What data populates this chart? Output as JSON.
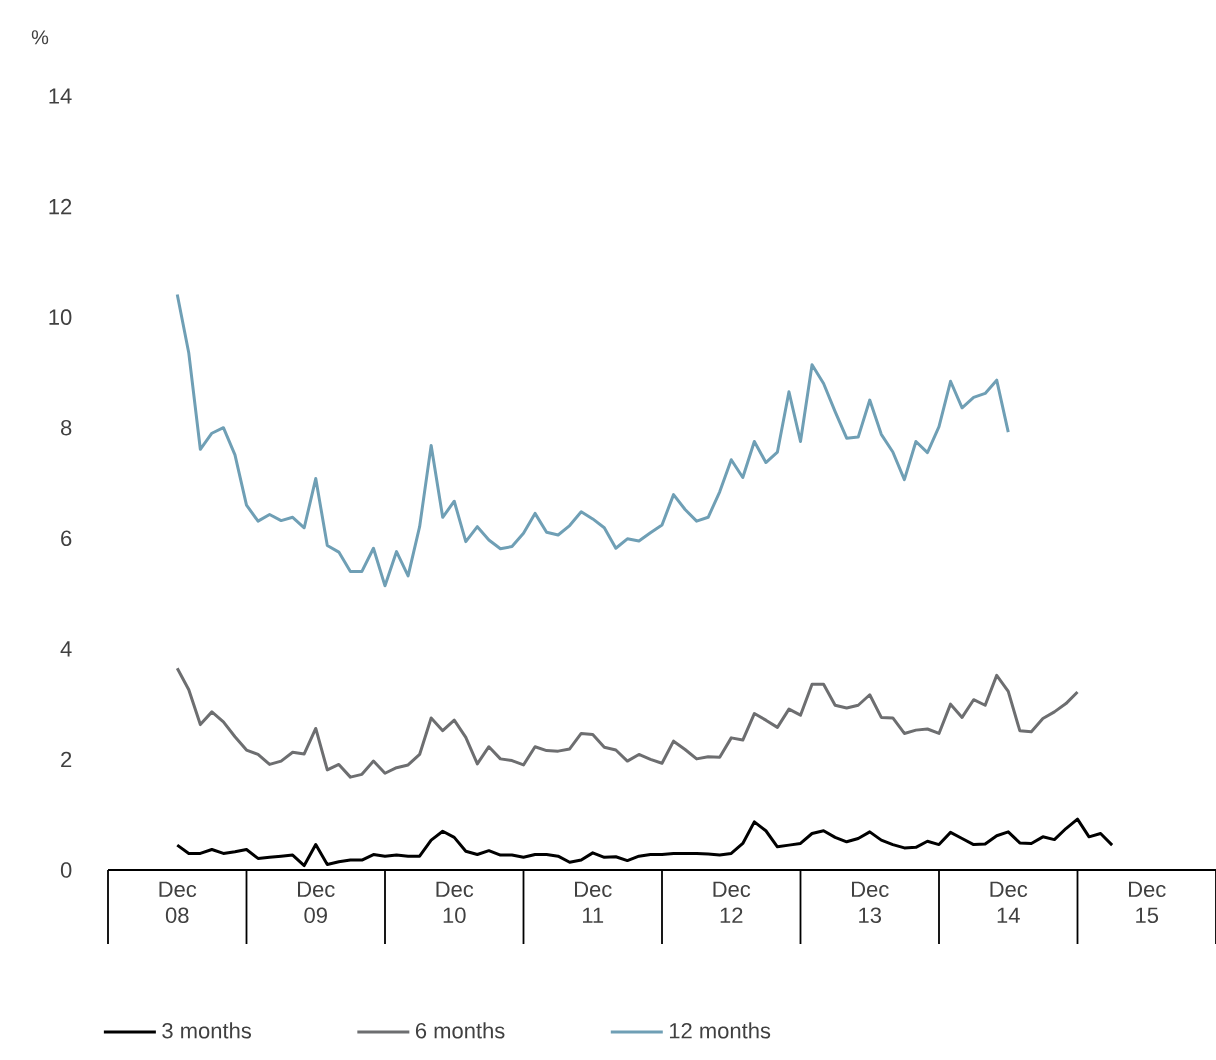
{
  "chart_data": {
    "type": "line",
    "ylabel": "%",
    "xlim": [
      "2008-06",
      "2016-06"
    ],
    "ylim": [
      0,
      14
    ],
    "yticks": [
      0,
      2,
      4,
      6,
      8,
      10,
      12,
      14
    ],
    "xticks": [
      {
        "value": "2008-12",
        "label": "Dec 08"
      },
      {
        "value": "2009-12",
        "label": "Dec 09"
      },
      {
        "value": "2010-12",
        "label": "Dec 10"
      },
      {
        "value": "2011-12",
        "label": "Dec 11"
      },
      {
        "value": "2012-12",
        "label": "Dec 12"
      },
      {
        "value": "2013-12",
        "label": "Dec 13"
      },
      {
        "value": "2014-12",
        "label": "Dec 14"
      },
      {
        "value": "2015-12",
        "label": "Dec 15"
      }
    ],
    "legend": "bottom",
    "grid": false,
    "series": [
      {
        "name": "3 months",
        "color": "#000000",
        "x": [
          "2008-12",
          "2009-01",
          "2009-02",
          "2009-03",
          "2009-04",
          "2009-05",
          "2009-06",
          "2009-07",
          "2009-08",
          "2009-09",
          "2009-10",
          "2009-11",
          "2009-12",
          "2010-01",
          "2010-02",
          "2010-03",
          "2010-04",
          "2010-05",
          "2010-06",
          "2010-07",
          "2010-08",
          "2010-09",
          "2010-10",
          "2010-11",
          "2010-12",
          "2011-01",
          "2011-02",
          "2011-03",
          "2011-04",
          "2011-05",
          "2011-06",
          "2011-07",
          "2011-08",
          "2011-09",
          "2011-10",
          "2011-11",
          "2011-12",
          "2012-01",
          "2012-02",
          "2012-03",
          "2012-04",
          "2012-05",
          "2012-06",
          "2012-07",
          "2012-08",
          "2012-09",
          "2012-10",
          "2012-11",
          "2012-12",
          "2013-01",
          "2013-02",
          "2013-03",
          "2013-04",
          "2013-05",
          "2013-06",
          "2013-07",
          "2013-08",
          "2013-09",
          "2013-10",
          "2013-11",
          "2013-12",
          "2014-01",
          "2014-02",
          "2014-03",
          "2014-04",
          "2014-05",
          "2014-06",
          "2014-07",
          "2014-08",
          "2014-09",
          "2014-10",
          "2014-11",
          "2014-12",
          "2015-01",
          "2015-02",
          "2015-03",
          "2015-04",
          "2015-05",
          "2015-06",
          "2015-07",
          "2015-08",
          "2015-09"
        ],
        "values": [
          0.45,
          0.3,
          0.3,
          0.37,
          0.3,
          0.33,
          0.37,
          0.21,
          0.23,
          0.25,
          0.27,
          0.08,
          0.46,
          0.1,
          0.15,
          0.18,
          0.18,
          0.28,
          0.25,
          0.27,
          0.25,
          0.25,
          0.54,
          0.7,
          0.59,
          0.34,
          0.28,
          0.35,
          0.27,
          0.27,
          0.23,
          0.28,
          0.28,
          0.25,
          0.14,
          0.18,
          0.31,
          0.23,
          0.24,
          0.17,
          0.25,
          0.28,
          0.28,
          0.3,
          0.3,
          0.3,
          0.29,
          0.27,
          0.3,
          0.48,
          0.87,
          0.71,
          0.42,
          0.45,
          0.48,
          0.66,
          0.71,
          0.59,
          0.51,
          0.57,
          0.69,
          0.54,
          0.46,
          0.4,
          0.41,
          0.52,
          0.46,
          0.68,
          0.57,
          0.46,
          0.47,
          0.62,
          0.69,
          0.49,
          0.48,
          0.6,
          0.55,
          0.75,
          0.92,
          0.6,
          0.66,
          0.45
        ]
      },
      {
        "name": "6 months",
        "color": "#6d6e70",
        "x": [
          "2008-12",
          "2009-01",
          "2009-02",
          "2009-03",
          "2009-04",
          "2009-05",
          "2009-06",
          "2009-07",
          "2009-08",
          "2009-09",
          "2009-10",
          "2009-11",
          "2009-12",
          "2010-01",
          "2010-02",
          "2010-03",
          "2010-04",
          "2010-05",
          "2010-06",
          "2010-07",
          "2010-08",
          "2010-09",
          "2010-10",
          "2010-11",
          "2010-12",
          "2011-01",
          "2011-02",
          "2011-03",
          "2011-04",
          "2011-05",
          "2011-06",
          "2011-07",
          "2011-08",
          "2011-09",
          "2011-10",
          "2011-11",
          "2011-12",
          "2012-01",
          "2012-02",
          "2012-03",
          "2012-04",
          "2012-05",
          "2012-06",
          "2012-07",
          "2012-08",
          "2012-09",
          "2012-10",
          "2012-11",
          "2012-12",
          "2013-01",
          "2013-02",
          "2013-03",
          "2013-04",
          "2013-05",
          "2013-06",
          "2013-07",
          "2013-08",
          "2013-09",
          "2013-10",
          "2013-11",
          "2013-12",
          "2014-01",
          "2014-02",
          "2014-03",
          "2014-04",
          "2014-05",
          "2014-06",
          "2014-07",
          "2014-08",
          "2014-09",
          "2014-10",
          "2014-11",
          "2014-12",
          "2015-01",
          "2015-02",
          "2015-03",
          "2015-04",
          "2015-05",
          "2015-06"
        ],
        "values": [
          3.65,
          3.26,
          2.63,
          2.86,
          2.68,
          2.41,
          2.17,
          2.09,
          1.91,
          1.97,
          2.13,
          2.1,
          2.56,
          1.81,
          1.91,
          1.68,
          1.73,
          1.97,
          1.75,
          1.85,
          1.9,
          2.09,
          2.75,
          2.52,
          2.71,
          2.4,
          1.92,
          2.23,
          2.01,
          1.98,
          1.9,
          2.23,
          2.16,
          2.15,
          2.19,
          2.47,
          2.45,
          2.22,
          2.17,
          1.97,
          2.09,
          2.0,
          1.93,
          2.33,
          2.18,
          2.01,
          2.05,
          2.04,
          2.39,
          2.35,
          2.83,
          2.71,
          2.58,
          2.91,
          2.8,
          3.36,
          3.36,
          2.98,
          2.93,
          2.98,
          3.17,
          2.76,
          2.75,
          2.47,
          2.53,
          2.55,
          2.47,
          3.0,
          2.76,
          3.08,
          2.98,
          3.52,
          3.23,
          2.52,
          2.5,
          2.74,
          2.86,
          3.01,
          3.22
        ]
      },
      {
        "name": "12 months",
        "color": "#6f9fb5",
        "x": [
          "2008-12",
          "2009-01",
          "2009-02",
          "2009-03",
          "2009-04",
          "2009-05",
          "2009-06",
          "2009-07",
          "2009-08",
          "2009-09",
          "2009-10",
          "2009-11",
          "2009-12",
          "2010-01",
          "2010-02",
          "2010-03",
          "2010-04",
          "2010-05",
          "2010-06",
          "2010-07",
          "2010-08",
          "2010-09",
          "2010-10",
          "2010-11",
          "2010-12",
          "2011-01",
          "2011-02",
          "2011-03",
          "2011-04",
          "2011-05",
          "2011-06",
          "2011-07",
          "2011-08",
          "2011-09",
          "2011-10",
          "2011-11",
          "2011-12",
          "2012-01",
          "2012-02",
          "2012-03",
          "2012-04",
          "2012-05",
          "2012-06",
          "2012-07",
          "2012-08",
          "2012-09",
          "2012-10",
          "2012-11",
          "2012-12",
          "2013-01",
          "2013-02",
          "2013-03",
          "2013-04",
          "2013-05",
          "2013-06",
          "2013-07",
          "2013-08",
          "2013-09",
          "2013-10",
          "2013-11",
          "2013-12",
          "2014-01",
          "2014-02",
          "2014-03",
          "2014-04",
          "2014-05",
          "2014-06",
          "2014-07",
          "2014-08",
          "2014-09",
          "2014-10",
          "2014-11",
          "2014-12"
        ],
        "values": [
          10.41,
          9.35,
          7.61,
          7.9,
          8.0,
          7.51,
          6.6,
          6.31,
          6.43,
          6.32,
          6.38,
          6.19,
          7.08,
          5.87,
          5.75,
          5.4,
          5.4,
          5.82,
          5.14,
          5.76,
          5.32,
          6.21,
          7.68,
          6.38,
          6.67,
          5.94,
          6.21,
          5.97,
          5.81,
          5.85,
          6.09,
          6.45,
          6.11,
          6.06,
          6.23,
          6.48,
          6.35,
          6.19,
          5.82,
          5.99,
          5.95,
          6.1,
          6.24,
          6.79,
          6.52,
          6.31,
          6.38,
          6.84,
          7.42,
          7.1,
          7.75,
          7.37,
          7.56,
          8.65,
          7.75,
          9.14,
          8.8,
          8.29,
          7.81,
          7.83,
          8.5,
          7.88,
          7.56,
          7.06,
          7.75,
          7.55,
          8.02,
          8.84,
          8.36,
          8.55,
          8.62,
          8.86,
          7.92
        ]
      }
    ]
  }
}
